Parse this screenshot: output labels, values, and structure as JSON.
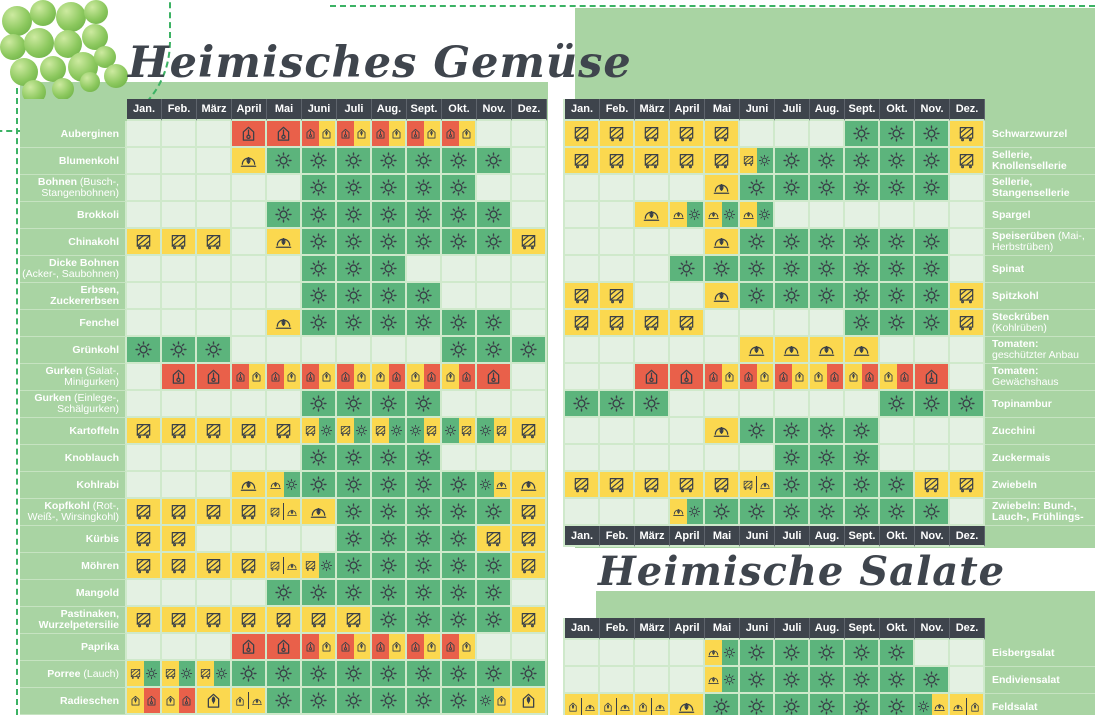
{
  "title_gemuese": "Heimisches Gemüse",
  "title_salate": "Heimische Salate",
  "months": [
    "Jan.",
    "Feb.",
    "März",
    "April",
    "Mai",
    "Juni",
    "Juli",
    "Aug.",
    "Sept.",
    "Okt.",
    "Nov.",
    "Dez."
  ],
  "colors": {
    "panel_green": "#a9d4a3",
    "cell_empty": "#e4f1e3",
    "grid_line": "#cfe9cb",
    "season_green": "#5cb47c",
    "storage_yellow": "#fbd84f",
    "greenhouse_red": "#e9604a",
    "header_bg": "#3e444c",
    "header_text": "#ffffff",
    "icon_stroke": "#3a4048",
    "dashed_line": "#3cb264",
    "title_color": "#3f454d"
  },
  "icon_names": {
    "sun": "sun-icon",
    "crate": "storage-crate-icon",
    "tunnel": "foil-tunnel-icon",
    "red": "heated-greenhouse-icon",
    "hleaf": "greenhouse-icon"
  },
  "table_left": {
    "rows": [
      {
        "name": "Auberginen",
        "note": "",
        "cells": [
          "",
          "",
          "",
          "red",
          "red",
          "red|hleaf",
          "red|hleaf",
          "red|hleaf",
          "red|hleaf",
          "red|hleaf",
          "",
          ""
        ]
      },
      {
        "name": "Blumenkohl",
        "note": "",
        "cells": [
          "",
          "",
          "",
          "tunnel",
          "sun",
          "sun",
          "sun",
          "sun",
          "sun",
          "sun",
          "sun",
          ""
        ]
      },
      {
        "name": "Bohnen",
        "note": "(Busch-, Stangenbohnen)",
        "cells": [
          "",
          "",
          "",
          "",
          "",
          "sun",
          "sun",
          "sun",
          "sun",
          "sun",
          "",
          ""
        ]
      },
      {
        "name": "Brokkoli",
        "note": "",
        "cells": [
          "",
          "",
          "",
          "",
          "sun",
          "sun",
          "sun",
          "sun",
          "sun",
          "sun",
          "sun",
          ""
        ]
      },
      {
        "name": "Chinakohl",
        "note": "",
        "cells": [
          "crate",
          "crate",
          "crate",
          "",
          "tunnel",
          "sun",
          "sun",
          "sun",
          "sun",
          "sun",
          "sun",
          "crate"
        ]
      },
      {
        "name": "Dicke Bohnen",
        "note": "(Acker-, Saubohnen)",
        "cells": [
          "",
          "",
          "",
          "",
          "",
          "sun",
          "sun",
          "sun",
          "",
          "",
          "",
          ""
        ]
      },
      {
        "name": "Erbsen, Zuckererbsen",
        "note": "",
        "cells": [
          "",
          "",
          "",
          "",
          "",
          "sun",
          "sun",
          "sun",
          "sun",
          "",
          "",
          ""
        ]
      },
      {
        "name": "Fenchel",
        "note": "",
        "cells": [
          "",
          "",
          "",
          "",
          "tunnel",
          "sun",
          "sun",
          "sun",
          "sun",
          "sun",
          "sun",
          ""
        ]
      },
      {
        "name": "Grünkohl",
        "note": "",
        "cells": [
          "sun",
          "sun",
          "sun",
          "",
          "",
          "",
          "",
          "",
          "",
          "sun",
          "sun",
          "sun"
        ]
      },
      {
        "name": "Gurken",
        "note": "(Salat-, Minigurken)",
        "cells": [
          "",
          "red",
          "red",
          "red|hleaf",
          "red|hleaf",
          "red|hleaf",
          "red|hleaf",
          "hleaf|red",
          "hleaf|red",
          "hleaf|red",
          "red",
          ""
        ]
      },
      {
        "name": "Gurken",
        "note": "(Einlege-, Schälgurken)",
        "cells": [
          "",
          "",
          "",
          "",
          "",
          "sun",
          "sun",
          "sun",
          "sun",
          "",
          "",
          ""
        ]
      },
      {
        "name": "Kartoffeln",
        "note": "",
        "cells": [
          "crate",
          "crate",
          "crate",
          "crate",
          "crate",
          "crate|sun",
          "crate|sun",
          "crate|sun",
          "sun|crate",
          "sun|crate",
          "sun|crate",
          "crate"
        ]
      },
      {
        "name": "Knoblauch",
        "note": "",
        "cells": [
          "",
          "",
          "",
          "",
          "",
          "sun",
          "sun",
          "sun",
          "sun",
          "",
          "",
          ""
        ]
      },
      {
        "name": "Kohlrabi",
        "note": "",
        "cells": [
          "",
          "",
          "",
          "tunnel",
          "tunnel|sun",
          "sun",
          "sun",
          "sun",
          "sun",
          "sun",
          "sun|tunnel",
          "tunnel"
        ]
      },
      {
        "name": "Kopfkohl",
        "note": "(Rot-, Weiß-, Wirsingkohl)",
        "cells": [
          "crate",
          "crate",
          "crate",
          "crate",
          "crate+tunnel",
          "tunnel",
          "sun",
          "sun",
          "sun",
          "sun",
          "sun",
          "crate"
        ]
      },
      {
        "name": "Kürbis",
        "note": "",
        "cells": [
          "crate",
          "crate",
          "",
          "",
          "",
          "",
          "sun",
          "sun",
          "sun",
          "sun",
          "crate",
          "crate"
        ]
      },
      {
        "name": "Möhren",
        "note": "",
        "cells": [
          "crate",
          "crate",
          "crate",
          "crate",
          "crate+tunnel",
          "crate|sun",
          "sun",
          "sun",
          "sun",
          "sun",
          "sun",
          "crate"
        ]
      },
      {
        "name": "Mangold",
        "note": "",
        "cells": [
          "",
          "",
          "",
          "",
          "sun",
          "sun",
          "sun",
          "sun",
          "sun",
          "sun",
          "sun",
          ""
        ]
      },
      {
        "name": "Pastinaken, Wurzelpetersilie",
        "note": "",
        "cells": [
          "crate",
          "crate",
          "crate",
          "crate",
          "crate",
          "crate",
          "crate",
          "sun",
          "sun",
          "sun",
          "sun",
          "crate"
        ]
      },
      {
        "name": "Paprika",
        "note": "",
        "cells": [
          "",
          "",
          "",
          "red",
          "red",
          "red|hleaf",
          "red|hleaf",
          "red|hleaf",
          "red|hleaf",
          "red|hleaf",
          "",
          ""
        ]
      },
      {
        "name": "Porree",
        "note": "(Lauch)",
        "cells": [
          "crate|sun",
          "crate|sun",
          "crate|sun",
          "sun",
          "sun",
          "sun",
          "sun",
          "sun",
          "sun",
          "sun",
          "sun",
          "sun"
        ]
      },
      {
        "name": "Radieschen",
        "note": "",
        "cells": [
          "hleaf|red",
          "hleaf|red",
          "hleaf",
          "hleaf+tunnel",
          "sun",
          "sun",
          "sun",
          "sun",
          "sun",
          "sun",
          "sun|hleaf",
          "hleaf"
        ]
      }
    ]
  },
  "table_right": {
    "rows": [
      {
        "name": "Schwarzwurzel",
        "note": "",
        "cells": [
          "crate",
          "crate",
          "crate",
          "crate",
          "crate",
          "",
          "",
          "",
          "sun",
          "sun",
          "sun",
          "crate"
        ]
      },
      {
        "name": "Sellerie, Knollensellerie",
        "note": "",
        "cells": [
          "crate",
          "crate",
          "crate",
          "crate",
          "crate",
          "crate|sun",
          "sun",
          "sun",
          "sun",
          "sun",
          "sun",
          "crate"
        ]
      },
      {
        "name": "Sellerie, Stangensellerie",
        "note": "",
        "cells": [
          "",
          "",
          "",
          "",
          "tunnel",
          "sun",
          "sun",
          "sun",
          "sun",
          "sun",
          "sun",
          ""
        ]
      },
      {
        "name": "Spargel",
        "note": "",
        "cells": [
          "",
          "",
          "tunnel",
          "tunnel|sun",
          "tunnel|sun",
          "tunnel|sun",
          "",
          "",
          "",
          "",
          "",
          ""
        ]
      },
      {
        "name": "Speiserüben",
        "note": "(Mai-, Herbstrüben)",
        "cells": [
          "",
          "",
          "",
          "",
          "tunnel",
          "sun",
          "sun",
          "sun",
          "sun",
          "sun",
          "sun",
          ""
        ]
      },
      {
        "name": "Spinat",
        "note": "",
        "cells": [
          "",
          "",
          "",
          "sun",
          "sun",
          "sun",
          "sun",
          "sun",
          "sun",
          "sun",
          "sun",
          ""
        ]
      },
      {
        "name": "Spitzkohl",
        "note": "",
        "cells": [
          "crate",
          "crate",
          "",
          "",
          "tunnel",
          "sun",
          "sun",
          "sun",
          "sun",
          "sun",
          "sun",
          "crate"
        ]
      },
      {
        "name": "Steckrüben",
        "note": "(Kohlrüben)",
        "cells": [
          "crate",
          "crate",
          "crate",
          "crate",
          "",
          "",
          "",
          "",
          "sun",
          "sun",
          "sun",
          "crate"
        ]
      },
      {
        "name": "Tomaten:",
        "note": "geschützter Anbau",
        "cells": [
          "",
          "",
          "",
          "",
          "",
          "tunnel",
          "tunnel",
          "tunnel",
          "tunnel",
          "",
          "",
          ""
        ]
      },
      {
        "name": "Tomaten:",
        "note": "Gewächshaus",
        "cells": [
          "",
          "",
          "red",
          "red",
          "red|hleaf",
          "red|hleaf",
          "red|hleaf",
          "hleaf|red",
          "hleaf|red",
          "hleaf|red",
          "red",
          ""
        ]
      },
      {
        "name": "Topinambur",
        "note": "",
        "cells": [
          "sun",
          "sun",
          "sun",
          "",
          "",
          "",
          "",
          "",
          "",
          "sun",
          "sun",
          "sun"
        ]
      },
      {
        "name": "Zucchini",
        "note": "",
        "cells": [
          "",
          "",
          "",
          "",
          "tunnel",
          "sun",
          "sun",
          "sun",
          "sun",
          "",
          "",
          ""
        ]
      },
      {
        "name": "Zuckermais",
        "note": "",
        "cells": [
          "",
          "",
          "",
          "",
          "",
          "",
          "sun",
          "sun",
          "sun",
          "",
          "",
          ""
        ]
      },
      {
        "name": "Zwiebeln",
        "note": "",
        "cells": [
          "crate",
          "crate",
          "crate",
          "crate",
          "crate",
          "crate+tunnel",
          "sun",
          "sun",
          "sun",
          "sun",
          "crate",
          "crate"
        ]
      },
      {
        "name": "Zwiebeln: Bund-, Lauch-, Frühlings-",
        "note": "",
        "cells": [
          "",
          "",
          "",
          "tunnel|sun",
          "sun",
          "sun",
          "sun",
          "sun",
          "sun",
          "sun",
          "sun",
          ""
        ]
      }
    ]
  },
  "table_salate": {
    "rows": [
      {
        "name": "Eisbergsalat",
        "note": "",
        "cells": [
          "",
          "",
          "",
          "",
          "tunnel|sun",
          "sun",
          "sun",
          "sun",
          "sun",
          "sun",
          "",
          ""
        ]
      },
      {
        "name": "Endiviensalat",
        "note": "",
        "cells": [
          "",
          "",
          "",
          "",
          "tunnel|sun",
          "sun",
          "sun",
          "sun",
          "sun",
          "sun",
          "sun",
          ""
        ]
      },
      {
        "name": "Feldsalat",
        "note": "",
        "cells": [
          "hleaf+tunnel",
          "hleaf+tunnel",
          "hleaf+tunnel",
          "tunnel",
          "sun",
          "sun",
          "sun",
          "sun",
          "sun",
          "sun",
          "sun|tunnel",
          "tunnel+hleaf"
        ]
      }
    ]
  }
}
